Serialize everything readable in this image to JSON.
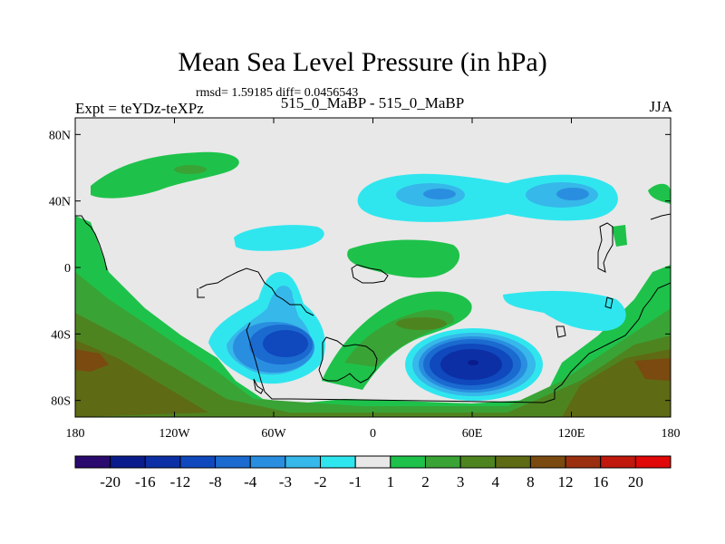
{
  "title": "Mean Sea Level Pressure (in hPa)",
  "stats": "rmsd= 1.59185 diff= 0.0456543",
  "left_label": "Expt = teYDz-teXPz",
  "center_label": "515_0_MaBP - 515_0_MaBP",
  "right_label": "JJA",
  "latitude_labels": [
    {
      "value": 80,
      "text": "80N"
    },
    {
      "value": 40,
      "text": "40N"
    },
    {
      "value": 0,
      "text": "0"
    },
    {
      "value": -40,
      "text": "40S"
    },
    {
      "value": -80,
      "text": "80S"
    }
  ],
  "longitude_labels": [
    {
      "value": -180,
      "text": "180"
    },
    {
      "value": -120,
      "text": "120W"
    },
    {
      "value": -60,
      "text": "60W"
    },
    {
      "value": 0,
      "text": "0"
    },
    {
      "value": 60,
      "text": "60E"
    },
    {
      "value": 120,
      "text": "120E"
    },
    {
      "value": 180,
      "text": "180"
    }
  ],
  "colorbar": {
    "labels": [
      "-20",
      "-16",
      "-12",
      "-8",
      "-4",
      "-3",
      "-2",
      "-1",
      "1",
      "2",
      "3",
      "4",
      "8",
      "12",
      "16",
      "20"
    ],
    "colors": [
      "#2a0a6e",
      "#0a1c8c",
      "#0c2fa6",
      "#1048bd",
      "#1a6ad0",
      "#2a8ee0",
      "#36b8ea",
      "#30e6ee",
      "#e8e8e8",
      "#1ec24a",
      "#3aa336",
      "#4e8420",
      "#5e6a14",
      "#7a4a10",
      "#9a3010",
      "#c0180c",
      "#e00808"
    ]
  }
}
